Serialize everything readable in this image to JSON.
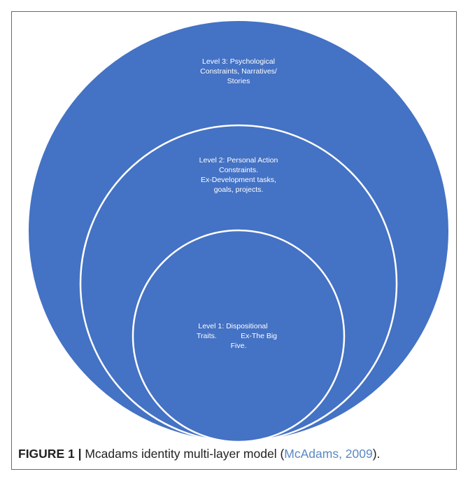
{
  "levels": {
    "level3": {
      "lines": [
        "Level 3: Psychological",
        "Constraints, Narratives/",
        "Stories"
      ]
    },
    "level2": {
      "lines": [
        "Level 2: Personal Action",
        "Constraints.",
        "Ex-Development tasks,",
        "goals, projects."
      ]
    },
    "level1": {
      "lines": [
        "Level 1:  Dispositional",
        "Traits.",
        "Ex-The Big",
        "Five."
      ]
    }
  },
  "caption": {
    "label": "FIGURE 1 |",
    "text_before": " Mcadams identity multi-layer model (",
    "citation": "McAdams, 2009",
    "text_after": ")."
  },
  "colors": {
    "circle_fill": "#4472c4",
    "circle_stroke": "#ffffff",
    "citation": "#5b88c4"
  }
}
